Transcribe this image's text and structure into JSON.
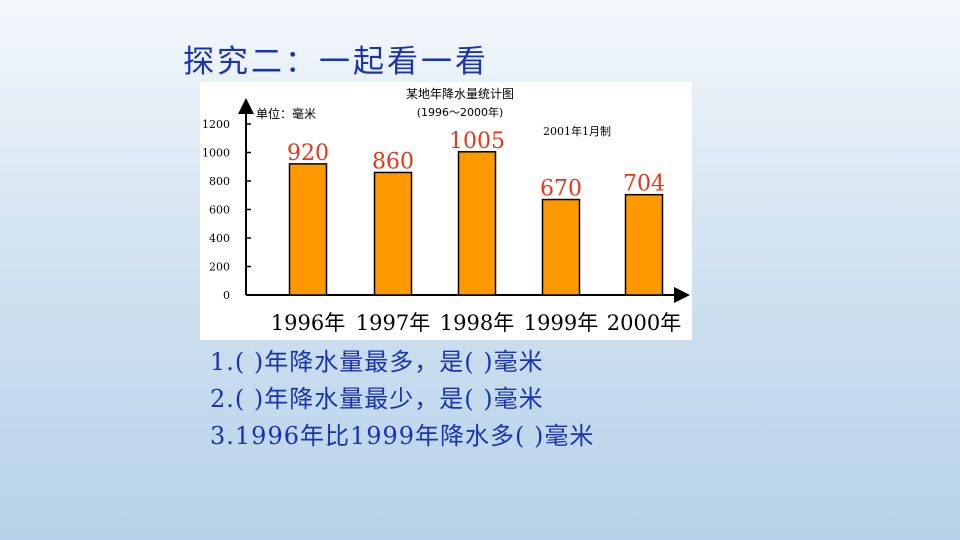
{
  "slide": {
    "title": "探究二：一起看一看",
    "questions": [
      "1.(    )年降水量最多，是(    )毫米",
      "2.(    )年降水量最少，是(    )毫米",
      "3.1996年比1999年降水多(    )毫米"
    ]
  },
  "chart_data": {
    "type": "bar",
    "title": "某地年降水量统计图",
    "subtitle": "(1996～2000年)",
    "unit_label": "单位：毫米",
    "note": "2001年1月制",
    "categories": [
      "1996年",
      "1997年",
      "1998年",
      "1999年",
      "2000年"
    ],
    "values": [
      920,
      860,
      1005,
      670,
      704
    ],
    "data_labels": [
      "920",
      "860",
      "1005",
      "670",
      "704"
    ],
    "yticks": [
      "0",
      "200",
      "400",
      "600",
      "800",
      "1000",
      "1200"
    ],
    "ylim": [
      0,
      1200
    ],
    "bar_color": "#ff9900",
    "label_color": "#e8361c",
    "grid": false,
    "legend": "none"
  }
}
